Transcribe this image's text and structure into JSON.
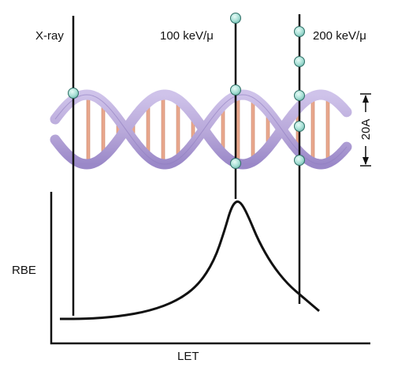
{
  "labels": {
    "xray": "X-ray",
    "kev100": "100 keV/μ",
    "kev200": "200 keV/μ",
    "width": "20A",
    "rbe": "RBE",
    "let": "LET"
  },
  "colors": {
    "helix_strand": "#b7a7d9",
    "helix_strand_dark": "#8f7dbf",
    "base_pair": "#e9a88d",
    "ionization": "#a8e0d6",
    "ionization_stroke": "#2f6f66",
    "line": "#111111"
  },
  "icons": [
    "ionization-dot"
  ]
}
